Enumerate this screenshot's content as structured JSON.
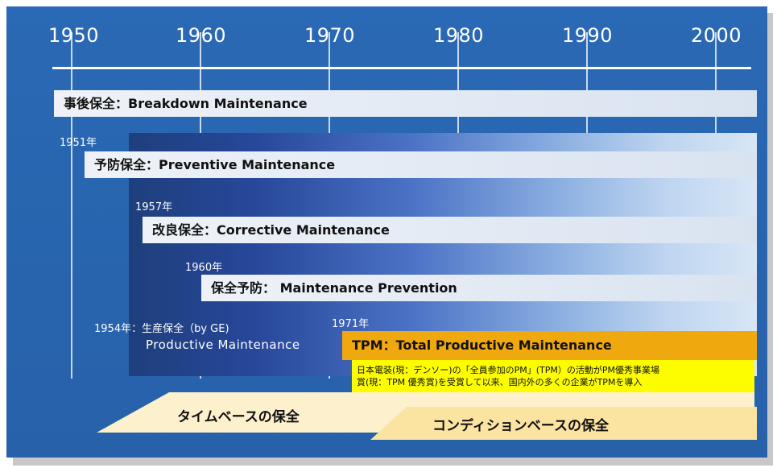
{
  "timeline": {
    "years": [
      "1950",
      "1960",
      "1970",
      "1980",
      "1990",
      "2000"
    ]
  },
  "bars": {
    "breakdown": "事後保全：Breakdown Maintenance",
    "preventive": "予防保全：Preventive Maintenance",
    "corrective": "改良保全：Corrective Maintenance",
    "prevention": "保全予防： Maintenance Prevention"
  },
  "year_labels": {
    "y1951": "1951年",
    "y1957": "1957年",
    "y1960": "1960年",
    "y1971": "1971年"
  },
  "productive": {
    "line1": "1954年：生産保全（by GE)",
    "line2": "Productive Maintenance"
  },
  "tpm": {
    "title": "TPM：Total Productive Maintenance",
    "note_line1": "日本電装(現：デンソー)の「全員参加のPM」(TPM）の活動がPM優秀事業場",
    "note_line2": "賞(現：TPM 優秀賞)を受賞して以来、国内外の多くの企業がTPMを導入"
  },
  "bands": {
    "time_based": "タイムベースの保全",
    "condition_based": "コンディションベースの保全"
  },
  "colors": {
    "panel_blue": "#2a69b5",
    "tpm_orange": "#f0a80f",
    "note_yellow": "#fdfd00",
    "band_cream": "#fdf0cc"
  }
}
